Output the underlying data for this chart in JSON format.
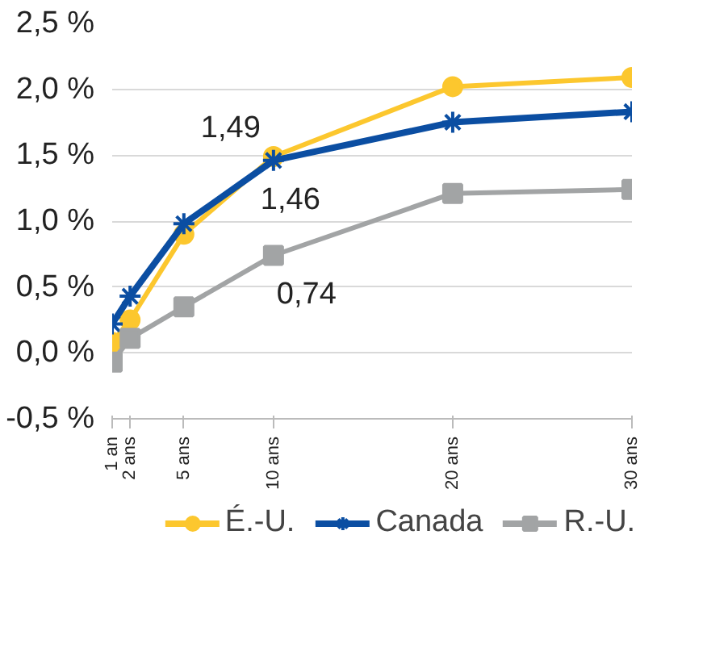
{
  "chart_data": {
    "type": "line",
    "x": [
      1,
      2,
      5,
      10,
      20,
      30
    ],
    "xlim": [
      1,
      30
    ],
    "xticks": [
      {
        "value": 1,
        "label": "1 an"
      },
      {
        "value": 2,
        "label": "2 ans"
      },
      {
        "value": 5,
        "label": "5 ans"
      },
      {
        "value": 10,
        "label": "10 ans"
      },
      {
        "value": 20,
        "label": "20 ans"
      },
      {
        "value": 30,
        "label": "30 ans"
      }
    ],
    "ylim": [
      -0.5,
      2.5
    ],
    "yticks": [
      {
        "value": -0.5,
        "label": "-0,5 %"
      },
      {
        "value": 0,
        "label": "0,0 %"
      },
      {
        "value": 0.5,
        "label": "0,5 %"
      },
      {
        "value": 1,
        "label": "1,0 %"
      },
      {
        "value": 1.5,
        "label": "1,5 %"
      },
      {
        "value": 2,
        "label": "2,0 %"
      },
      {
        "value": 2.5,
        "label": "2,5 %"
      }
    ],
    "grid": "y",
    "legend": "bottom",
    "line_style": "solid",
    "series": [
      {
        "name": "É.-U.",
        "color": "#fcc72e",
        "marker": "circle",
        "values": [
          0.08,
          0.25,
          0.9,
          1.49,
          2.02,
          2.09
        ],
        "value_labels": [
          null,
          null,
          null,
          "1,49",
          null,
          null
        ]
      },
      {
        "name": "Canada",
        "color": "#0b4ea2",
        "marker": "cross",
        "values": [
          0.22,
          0.43,
          0.98,
          1.46,
          1.75,
          1.83
        ],
        "value_labels": [
          null,
          null,
          null,
          "1,46",
          null,
          null
        ]
      },
      {
        "name": "R.-U.",
        "color": "#a2a4a5",
        "marker": "square",
        "values": [
          -0.07,
          0.11,
          0.35,
          0.74,
          1.21,
          1.24
        ],
        "value_labels": [
          null,
          null,
          null,
          "0,74",
          null,
          null
        ]
      }
    ]
  }
}
